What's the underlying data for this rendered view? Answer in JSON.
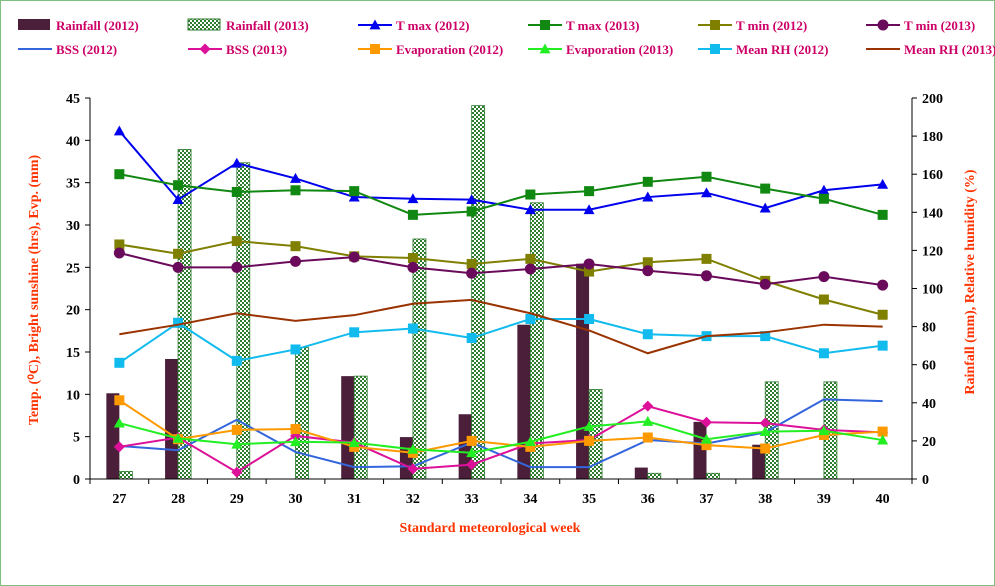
{
  "chart_data": {
    "type": "bar",
    "xlabel": "Standard meteorological week",
    "ylabel_left": "Temp. (⁰C), Bright sunshine (hrs), Evp. (mm)",
    "ylabel_right": "Rainfall (mm), Relative humidity (%)",
    "ylim_left": [
      0,
      45
    ],
    "ylim_right": [
      0,
      200
    ],
    "yticks_left": [
      0,
      5,
      10,
      15,
      20,
      25,
      30,
      35,
      40,
      45
    ],
    "yticks_right": [
      0,
      20,
      40,
      60,
      80,
      100,
      120,
      140,
      160,
      180,
      200
    ],
    "categories": [
      "27",
      "28",
      "29",
      "30",
      "31",
      "32",
      "33",
      "34",
      "35",
      "36",
      "37",
      "38",
      "39",
      "40"
    ],
    "grid": false,
    "legend_position": "top",
    "bar_series": [
      {
        "name": "Rainfall (2012)",
        "axis": "right",
        "color": "#4b1f3a",
        "pattern": "solid",
        "values": [
          45,
          63,
          0,
          0,
          54,
          22,
          34,
          81,
          113,
          6,
          30,
          18,
          0,
          0
        ]
      },
      {
        "name": "Rainfall (2013)",
        "axis": "right",
        "color": "#3a8a3a",
        "pattern": "checker",
        "values": [
          4,
          173,
          166,
          69,
          54,
          126,
          196,
          145,
          47,
          3,
          3,
          51,
          51,
          0
        ]
      }
    ],
    "line_series": [
      {
        "name": "T max (2012)",
        "axis": "left",
        "color": "#0000ee",
        "marker": "triangle",
        "values": [
          41.1,
          33.0,
          37.3,
          35.5,
          33.3,
          33.1,
          33.0,
          31.8,
          31.8,
          33.3,
          33.8,
          32.0,
          34.1,
          34.8
        ]
      },
      {
        "name": "T max (2013)",
        "axis": "left",
        "color": "#118811",
        "marker": "square",
        "values": [
          36.0,
          34.7,
          33.9,
          34.1,
          34.0,
          31.2,
          31.6,
          33.6,
          34.0,
          35.1,
          35.7,
          34.3,
          33.1,
          31.2
        ]
      },
      {
        "name": "T min (2012)",
        "axis": "left",
        "color": "#7f7f00",
        "marker": "square",
        "values": [
          27.7,
          26.6,
          28.1,
          27.5,
          26.3,
          26.1,
          25.4,
          26.0,
          24.5,
          25.6,
          26.0,
          23.4,
          21.2,
          19.4
        ]
      },
      {
        "name": "T min (2013)",
        "axis": "left",
        "color": "#6a0a5a",
        "marker": "circle",
        "values": [
          26.7,
          25.0,
          25.0,
          25.7,
          26.2,
          25.0,
          24.3,
          24.8,
          25.4,
          24.6,
          24.0,
          23.0,
          23.9,
          22.9
        ]
      },
      {
        "name": "BSS (2012)",
        "axis": "left",
        "color": "#3366dd",
        "marker": "none",
        "values": [
          3.9,
          3.4,
          7.0,
          3.2,
          1.4,
          1.5,
          4.3,
          1.4,
          1.4,
          4.6,
          4.2,
          5.5,
          9.4,
          9.2
        ]
      },
      {
        "name": "BSS (2013)",
        "axis": "left",
        "color": "#dd1199",
        "marker": "diamond",
        "values": [
          3.8,
          4.9,
          0.8,
          5.1,
          4.3,
          1.2,
          1.7,
          4.2,
          4.6,
          8.6,
          6.7,
          6.6,
          5.8,
          5.5
        ]
      },
      {
        "name": "Evaporation (2012)",
        "axis": "left",
        "color": "#ff9900",
        "marker": "square",
        "values": [
          9.3,
          4.7,
          5.8,
          5.9,
          3.8,
          3.1,
          4.5,
          3.8,
          4.5,
          4.9,
          4.0,
          3.6,
          5.2,
          5.6
        ]
      },
      {
        "name": "Evaporation (2013)",
        "axis": "left",
        "color": "#22ee22",
        "marker": "triangle",
        "values": [
          6.6,
          4.8,
          4.1,
          4.4,
          4.3,
          3.5,
          3.1,
          4.4,
          6.2,
          6.8,
          4.7,
          5.6,
          5.7,
          4.6
        ]
      },
      {
        "name": "Mean RH (2012)",
        "axis": "right",
        "color": "#11bbee",
        "marker": "square",
        "values": [
          61,
          82,
          62,
          68,
          77,
          79,
          74,
          84,
          84,
          76,
          75,
          75,
          66,
          70
        ]
      },
      {
        "name": "Mean RH (2013)",
        "axis": "right",
        "color": "#993300",
        "marker": "none",
        "values": [
          76,
          81,
          87,
          83,
          86,
          92,
          94,
          87,
          78,
          66,
          75,
          77,
          81,
          80
        ]
      }
    ]
  }
}
